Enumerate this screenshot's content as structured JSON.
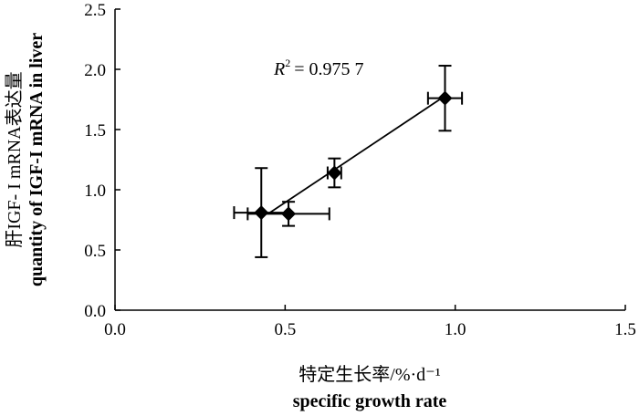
{
  "chart_data": {
    "type": "scatter",
    "xlabel": "特定生长率/%·d⁻¹",
    "xlabel_en": "specific growth rate",
    "ylabel": "肝IGF- I mRNA表达量",
    "ylabel_en": "quantity of IGF-I mRNA in liver",
    "xlim": [
      0,
      1.5
    ],
    "ylim": [
      0,
      2.5
    ],
    "xticks": [
      "0.0",
      "0.5",
      "1.0",
      "1.5"
    ],
    "yticks": [
      "0.0",
      "0.5",
      "1.0",
      "1.5",
      "2.0",
      "2.5"
    ],
    "annotation": "= 0.975 7",
    "annotation_var": "R",
    "annotation_sup": "2",
    "grid": false,
    "points": [
      {
        "x": 0.43,
        "y": 0.81,
        "xerr": 0.08,
        "yerr": 0.37
      },
      {
        "x": 0.51,
        "y": 0.8,
        "xerr": 0.12,
        "yerr": 0.1
      },
      {
        "x": 0.645,
        "y": 1.14,
        "xerr": 0.02,
        "yerr": 0.12
      },
      {
        "x": 0.97,
        "y": 1.76,
        "xerr": 0.05,
        "yerr": 0.27
      }
    ],
    "fit_line": {
      "x": [
        0.45,
        0.96
      ],
      "y": [
        0.8,
        1.76
      ]
    },
    "colors": {
      "marker": "#000000"
    }
  }
}
